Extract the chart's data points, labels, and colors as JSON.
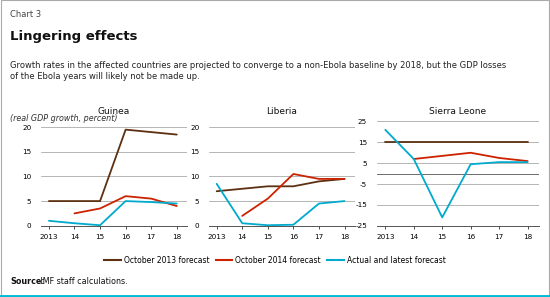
{
  "guinea": {
    "title": "Guinea",
    "ylim": [
      0,
      22
    ],
    "yticks": [
      0,
      5,
      10,
      15,
      20
    ],
    "xticks": [
      2013,
      2014,
      2015,
      2016,
      2017,
      2018
    ],
    "xticklabels": [
      "2013",
      "14",
      "15",
      "16",
      "17",
      "18"
    ],
    "oct2013": {
      "x": [
        2013,
        2014,
        2015,
        2016,
        2017,
        2018
      ],
      "y": [
        5.0,
        5.0,
        5.0,
        19.5,
        19.0,
        18.5
      ]
    },
    "oct2014": {
      "x": [
        2014,
        2015,
        2016,
        2017,
        2018
      ],
      "y": [
        2.5,
        3.5,
        6.0,
        5.5,
        4.0
      ]
    },
    "actual": {
      "x": [
        2013,
        2014,
        2015,
        2016,
        2017,
        2018
      ],
      "y": [
        1.0,
        0.5,
        0.1,
        5.0,
        4.8,
        4.5
      ]
    }
  },
  "liberia": {
    "title": "Liberia",
    "ylim": [
      0,
      22
    ],
    "yticks": [
      0,
      5,
      10,
      15,
      20
    ],
    "xticks": [
      2013,
      2014,
      2015,
      2016,
      2017,
      2018
    ],
    "xticklabels": [
      "2013",
      "14",
      "15",
      "16",
      "17",
      "18"
    ],
    "oct2013": {
      "x": [
        2013,
        2014,
        2015,
        2016,
        2017,
        2018
      ],
      "y": [
        7.0,
        7.5,
        8.0,
        8.0,
        9.0,
        9.5
      ]
    },
    "oct2014": {
      "x": [
        2014,
        2015,
        2016,
        2017,
        2018
      ],
      "y": [
        2.0,
        5.5,
        10.5,
        9.5,
        9.5
      ]
    },
    "actual": {
      "x": [
        2013,
        2014,
        2015,
        2016,
        2017,
        2018
      ],
      "y": [
        8.5,
        0.5,
        0.1,
        0.2,
        4.5,
        5.0
      ]
    }
  },
  "sierra_leone": {
    "title": "Sierra Leone",
    "ylim": [
      -25,
      27
    ],
    "yticks": [
      -25,
      -15,
      -5,
      5,
      15,
      25
    ],
    "xticks": [
      2013,
      2014,
      2015,
      2016,
      2017,
      2018
    ],
    "xticklabels": [
      "2013",
      "14",
      "15",
      "16",
      "17",
      "18"
    ],
    "oct2013": {
      "x": [
        2013,
        2014,
        2015,
        2016,
        2017,
        2018
      ],
      "y": [
        15.0,
        15.0,
        15.0,
        15.0,
        15.0,
        15.0
      ]
    },
    "oct2014": {
      "x": [
        2014,
        2015,
        2016,
        2017,
        2018
      ],
      "y": [
        7.0,
        8.5,
        10.0,
        7.5,
        6.0
      ]
    },
    "actual": {
      "x": [
        2013,
        2014,
        2015,
        2016,
        2017,
        2018
      ],
      "y": [
        21.0,
        7.0,
        -21.0,
        4.5,
        5.5,
        5.5
      ]
    }
  },
  "colors": {
    "oct2013": "#5C3010",
    "oct2014": "#CC2200",
    "actual": "#00AACC"
  },
  "legend": {
    "oct2013": "October 2013 forecast",
    "oct2014": "October 2014 forecast",
    "actual": "Actual and latest forecast"
  },
  "chart_label": "Chart 3",
  "title": "Lingering effects",
  "subtitle": "Growth rates in the affected countries are projected to converge to a non-Ebola baseline by 2018, but the GDP losses\nof the Ebola years will likely not be made up.",
  "axis_label": "(real GDP growth, percent)",
  "source_bold": "Source:",
  "source_rest": " IMF staff calculations.",
  "bg_color": "#FFFFFF",
  "grid_color": "#999999",
  "bottom_border_color": "#00BCD4"
}
